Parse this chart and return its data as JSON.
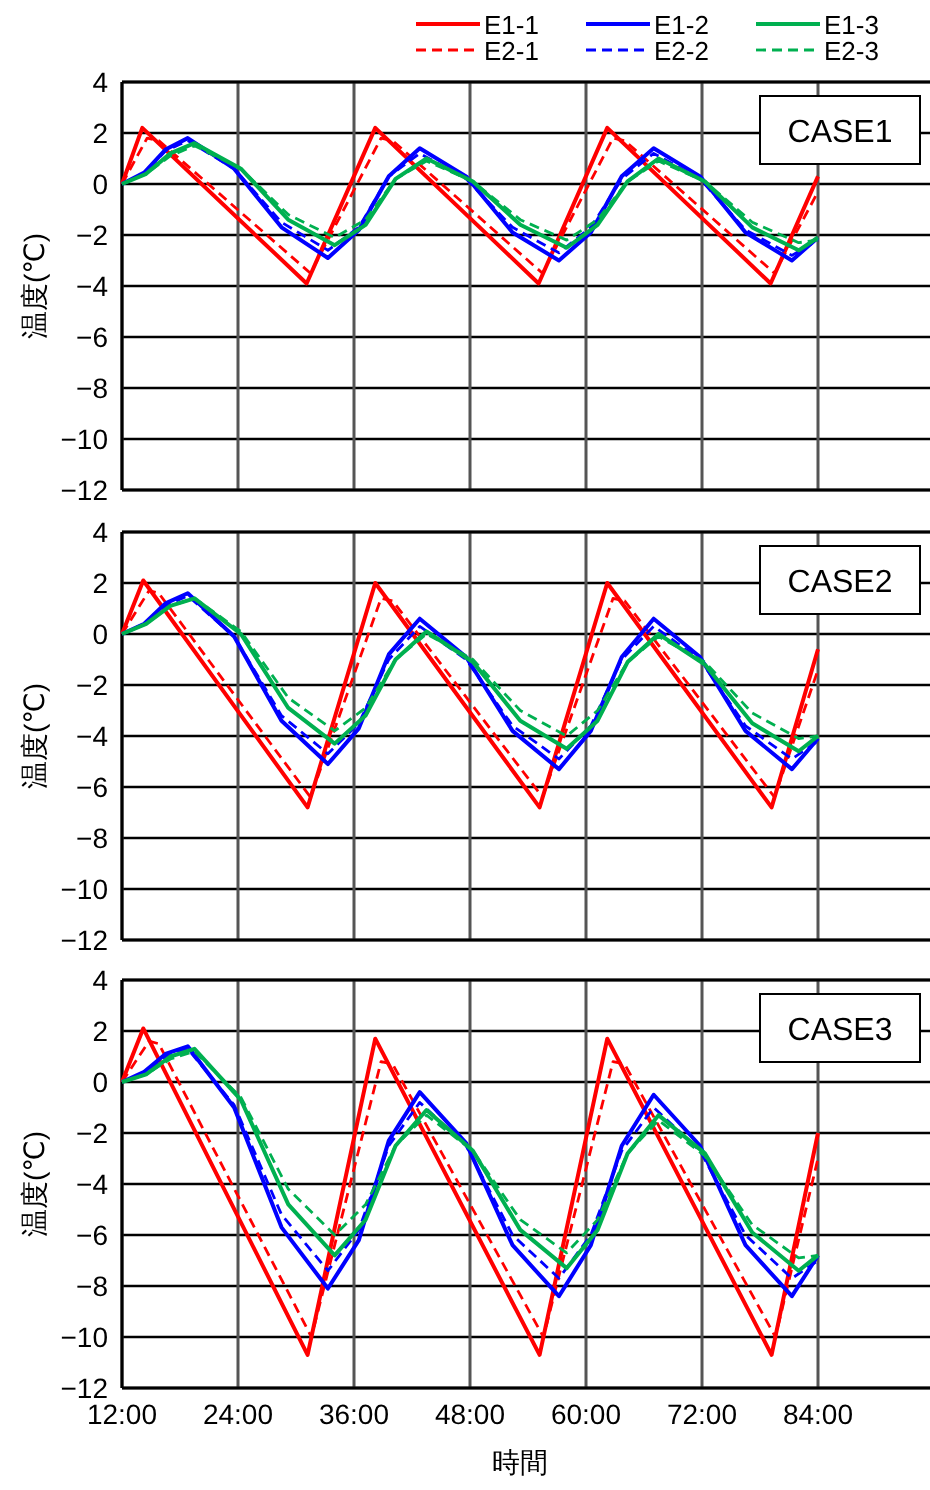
{
  "chart_data": [
    {
      "type": "line",
      "ylabel": "温度(℃)",
      "annotations": [
        "CASE1"
      ],
      "legend": "top right",
      "grid": true,
      "tick_labels": "y",
      "xlim": [
        12,
        96
      ],
      "ylim": [
        -12,
        4
      ],
      "xticks": [
        {
          "value": 12,
          "label": null
        },
        {
          "value": 24,
          "label": null
        },
        {
          "value": 36,
          "label": null
        },
        {
          "value": 48,
          "label": null
        },
        {
          "value": 60,
          "label": null
        },
        {
          "value": 72,
          "label": null
        },
        {
          "value": 84,
          "label": null
        }
      ],
      "yticks": [
        -12,
        -10,
        -8,
        -6,
        -4,
        -2,
        0,
        2,
        4
      ],
      "series": [
        {
          "name": "E1-1",
          "color": "#ff0000",
          "line_style": "solid",
          "x": [
            12,
            14.1,
            31.1,
            38.2,
            55.1,
            62.2,
            79.1,
            84
          ],
          "values": [
            0,
            2.2,
            -3.9,
            2.2,
            -3.9,
            2.2,
            -3.9,
            0.3
          ]
        },
        {
          "name": "E2-1",
          "color": "#ff0000",
          "line_style": "dashed",
          "x": [
            12,
            14.6,
            15.8,
            31.5,
            38.8,
            40,
            55.5,
            62.8,
            64,
            79.5,
            84
          ],
          "values": [
            0,
            1.8,
            1.7,
            -3.5,
            1.8,
            1.7,
            -3.5,
            1.8,
            1.7,
            -3.5,
            -0.3
          ]
        },
        {
          "name": "E1-2",
          "color": "#0000ff",
          "line_style": "solid",
          "x": [
            12,
            14.3,
            16.5,
            18.8,
            23.6,
            28.5,
            33.3,
            36.5,
            39.6,
            42.8,
            47.6,
            52.4,
            57.2,
            60.5,
            63.7,
            67,
            71.8,
            76.5,
            81.3,
            84
          ],
          "values": [
            0,
            0.45,
            1.35,
            1.8,
            0.6,
            -1.7,
            -2.9,
            -1.8,
            0.3,
            1.4,
            0.3,
            -1.9,
            -3.0,
            -1.9,
            0.3,
            1.4,
            0.3,
            -1.9,
            -3.0,
            -2.1
          ]
        },
        {
          "name": "E2-2",
          "color": "#0000ff",
          "line_style": "dashed",
          "x": [
            12,
            14.3,
            16.5,
            18.8,
            23.6,
            28.5,
            33.3,
            36.5,
            39.6,
            42.8,
            47.6,
            52.4,
            57.2,
            60.5,
            63.7,
            67,
            71.8,
            76.5,
            81.3,
            84
          ],
          "values": [
            0,
            0.4,
            1.3,
            1.7,
            0.6,
            -1.5,
            -2.6,
            -1.7,
            0.3,
            1.2,
            0.2,
            -1.7,
            -2.7,
            -1.7,
            0.2,
            1.2,
            0.2,
            -1.8,
            -2.8,
            -2.2
          ]
        },
        {
          "name": "E1-3",
          "color": "#00b050",
          "line_style": "solid",
          "x": [
            12,
            14.5,
            17,
            19.5,
            24.3,
            29.2,
            34,
            37.2,
            40.3,
            43.5,
            48.3,
            53.2,
            58,
            61.2,
            64.3,
            67.5,
            72.3,
            77.2,
            82,
            84
          ],
          "values": [
            0,
            0.4,
            1.2,
            1.6,
            0.6,
            -1.4,
            -2.4,
            -1.6,
            0.2,
            1.0,
            0.1,
            -1.6,
            -2.5,
            -1.6,
            0.1,
            1.0,
            0.1,
            -1.7,
            -2.6,
            -2.1
          ]
        },
        {
          "name": "E2-3",
          "color": "#00b050",
          "line_style": "dashed",
          "x": [
            12,
            14.5,
            17,
            19.5,
            24.3,
            29.2,
            34,
            37.2,
            40.3,
            43.5,
            48.3,
            53.2,
            58,
            61.2,
            64.3,
            67.5,
            72.3,
            77.2,
            82,
            84
          ],
          "values": [
            0,
            0.4,
            1.1,
            1.5,
            0.6,
            -1.2,
            -2.1,
            -1.4,
            0.2,
            0.9,
            0.1,
            -1.4,
            -2.2,
            -1.4,
            0.1,
            0.9,
            0.1,
            -1.5,
            -2.3,
            -2.2
          ]
        }
      ]
    },
    {
      "type": "line",
      "ylabel": "温度(℃)",
      "annotations": [
        "CASE2"
      ],
      "grid": true,
      "tick_labels": "y",
      "xlim": [
        12,
        96
      ],
      "ylim": [
        -12,
        4
      ],
      "xticks": [
        {
          "value": 12,
          "label": null
        },
        {
          "value": 24,
          "label": null
        },
        {
          "value": 36,
          "label": null
        },
        {
          "value": 48,
          "label": null
        },
        {
          "value": 60,
          "label": null
        },
        {
          "value": 72,
          "label": null
        },
        {
          "value": 84,
          "label": null
        }
      ],
      "yticks": [
        -12,
        -10,
        -8,
        -6,
        -4,
        -2,
        0,
        2,
        4
      ],
      "series": [
        {
          "color": "#ff0000",
          "line_style": "solid",
          "x": [
            12,
            14.2,
            31.2,
            38.2,
            55.2,
            62.2,
            79.2,
            84
          ],
          "values": [
            0,
            2.1,
            -6.8,
            2.0,
            -6.8,
            2.0,
            -6.8,
            -0.6
          ]
        },
        {
          "color": "#ff0000",
          "line_style": "dashed",
          "x": [
            12,
            14.8,
            15.8,
            31.5,
            38.8,
            40,
            55.5,
            62.8,
            64,
            79.5,
            84
          ],
          "values": [
            0,
            1.7,
            1.6,
            -6.4,
            1.4,
            1.3,
            -6.4,
            1.4,
            1.3,
            -6.4,
            -1.4
          ]
        },
        {
          "color": "#0000ff",
          "line_style": "solid",
          "x": [
            12,
            14.3,
            16.5,
            18.8,
            23.6,
            28.5,
            33.3,
            36.5,
            39.6,
            42.8,
            47.6,
            52.4,
            57.2,
            60.5,
            63.7,
            67,
            71.8,
            76.5,
            81.3,
            84
          ],
          "values": [
            0,
            0.4,
            1.2,
            1.6,
            -0.1,
            -3.4,
            -5.1,
            -3.7,
            -0.8,
            0.6,
            -0.9,
            -3.8,
            -5.3,
            -3.8,
            -0.9,
            0.6,
            -0.9,
            -3.8,
            -5.3,
            -4.1
          ]
        },
        {
          "color": "#0000ff",
          "line_style": "dashed",
          "x": [
            12,
            14.3,
            16.5,
            18.8,
            23.6,
            28.5,
            33.3,
            36.5,
            39.6,
            42.8,
            47.6,
            52.4,
            57.2,
            60.5,
            63.7,
            67,
            71.8,
            76.5,
            81.3,
            84
          ],
          "values": [
            0,
            0.4,
            1.1,
            1.5,
            -0.1,
            -3.2,
            -4.7,
            -3.5,
            -1.0,
            0.3,
            -1.0,
            -3.6,
            -4.9,
            -3.6,
            -1.0,
            0.3,
            -1.0,
            -3.6,
            -4.9,
            -4.2
          ]
        },
        {
          "color": "#00b050",
          "line_style": "solid",
          "x": [
            12,
            14.5,
            17,
            19.5,
            24.3,
            29.2,
            34,
            37.2,
            40.3,
            43.5,
            48.3,
            53.2,
            58,
            61.2,
            64.3,
            67.5,
            72.3,
            77.2,
            82,
            84
          ],
          "values": [
            0,
            0.4,
            1.1,
            1.4,
            0.0,
            -2.9,
            -4.3,
            -3.2,
            -1.0,
            0.1,
            -1.1,
            -3.4,
            -4.5,
            -3.4,
            -1.1,
            0.0,
            -1.2,
            -3.5,
            -4.6,
            -4.0
          ]
        },
        {
          "color": "#00b050",
          "line_style": "dashed",
          "x": [
            12,
            14.5,
            17,
            19.5,
            24.3,
            29.2,
            34,
            37.2,
            40.3,
            43.5,
            48.3,
            53.2,
            58,
            61.2,
            64.3,
            67.5,
            72.3,
            77.2,
            82,
            84
          ],
          "values": [
            0,
            0.4,
            1.1,
            1.4,
            0.1,
            -2.5,
            -3.8,
            -2.9,
            -1.0,
            0.0,
            -1.0,
            -3.0,
            -4.0,
            -3.0,
            -1.1,
            -0.1,
            -1.1,
            -3.1,
            -4.1,
            -4.0
          ]
        }
      ]
    },
    {
      "type": "line",
      "xlabel": "時間",
      "ylabel": "温度(℃)",
      "annotations": [
        "CASE3"
      ],
      "grid": true,
      "xlim": [
        12,
        96
      ],
      "ylim": [
        -12,
        4
      ],
      "xticks": [
        {
          "value": 12,
          "label": "12:00"
        },
        {
          "value": 24,
          "label": "24:00"
        },
        {
          "value": 36,
          "label": "36:00"
        },
        {
          "value": 48,
          "label": "48:00"
        },
        {
          "value": 60,
          "label": "60:00"
        },
        {
          "value": 72,
          "label": "72:00"
        },
        {
          "value": 84,
          "label": "84:00"
        }
      ],
      "yticks": [
        -12,
        -10,
        -8,
        -6,
        -4,
        -2,
        0,
        2,
        4
      ],
      "series": [
        {
          "color": "#ff0000",
          "line_style": "solid",
          "x": [
            12,
            14.2,
            31.2,
            38.2,
            55.2,
            62.2,
            79.2,
            84
          ],
          "values": [
            0,
            2.1,
            -10.7,
            1.7,
            -10.7,
            1.7,
            -10.7,
            -2.0
          ]
        },
        {
          "color": "#ff0000",
          "line_style": "dashed",
          "x": [
            12,
            14.8,
            15.8,
            31.6,
            38.8,
            40,
            55.6,
            62.8,
            64,
            79.6,
            84
          ],
          "values": [
            0,
            1.6,
            1.5,
            -10.0,
            0.8,
            0.7,
            -10.0,
            0.8,
            0.7,
            -10.0,
            -3.0
          ]
        },
        {
          "color": "#0000ff",
          "line_style": "solid",
          "x": [
            12,
            14.3,
            16.5,
            18.8,
            23.6,
            28.5,
            33.3,
            36.5,
            39.6,
            42.8,
            47.6,
            52.4,
            57.2,
            60.5,
            63.7,
            67,
            71.8,
            76.5,
            81.3,
            84
          ],
          "values": [
            0,
            0.4,
            1.1,
            1.4,
            -1.0,
            -5.7,
            -8.1,
            -6.2,
            -2.3,
            -0.4,
            -2.4,
            -6.4,
            -8.4,
            -6.4,
            -2.5,
            -0.5,
            -2.5,
            -6.4,
            -8.4,
            -6.8
          ]
        },
        {
          "color": "#0000ff",
          "line_style": "dashed",
          "x": [
            12,
            14.3,
            16.5,
            18.8,
            23.6,
            28.5,
            33.3,
            36.5,
            39.6,
            42.8,
            47.6,
            52.4,
            57.2,
            60.5,
            63.7,
            67,
            71.8,
            76.5,
            81.3,
            84
          ],
          "values": [
            0,
            0.3,
            1.0,
            1.3,
            -0.9,
            -5.2,
            -7.4,
            -5.8,
            -2.5,
            -0.8,
            -2.5,
            -6.0,
            -7.7,
            -6.0,
            -2.7,
            -1.0,
            -2.7,
            -6.0,
            -7.7,
            -7.0
          ]
        },
        {
          "color": "#00b050",
          "line_style": "solid",
          "x": [
            12,
            14.5,
            17,
            19.5,
            24.3,
            29.2,
            34,
            37.2,
            40.3,
            43.5,
            48.3,
            53.2,
            58,
            61.2,
            64.3,
            67.5,
            72.3,
            77.2,
            82,
            84
          ],
          "values": [
            0,
            0.3,
            1.0,
            1.3,
            -0.7,
            -4.8,
            -6.8,
            -5.4,
            -2.5,
            -1.1,
            -2.7,
            -5.8,
            -7.3,
            -5.8,
            -2.8,
            -1.3,
            -2.8,
            -5.9,
            -7.4,
            -6.8
          ]
        },
        {
          "color": "#00b050",
          "line_style": "dashed",
          "x": [
            12,
            14.5,
            17,
            19.5,
            24.3,
            29.2,
            34,
            37.2,
            40.3,
            43.5,
            48.3,
            53.2,
            58,
            61.2,
            64.3,
            67.5,
            72.3,
            77.2,
            82,
            84
          ],
          "values": [
            0,
            0.3,
            0.9,
            1.2,
            -0.6,
            -4.2,
            -6.0,
            -4.8,
            -2.5,
            -1.3,
            -2.7,
            -5.4,
            -6.7,
            -5.4,
            -2.8,
            -1.5,
            -2.9,
            -5.6,
            -6.9,
            -6.8
          ]
        }
      ]
    }
  ]
}
